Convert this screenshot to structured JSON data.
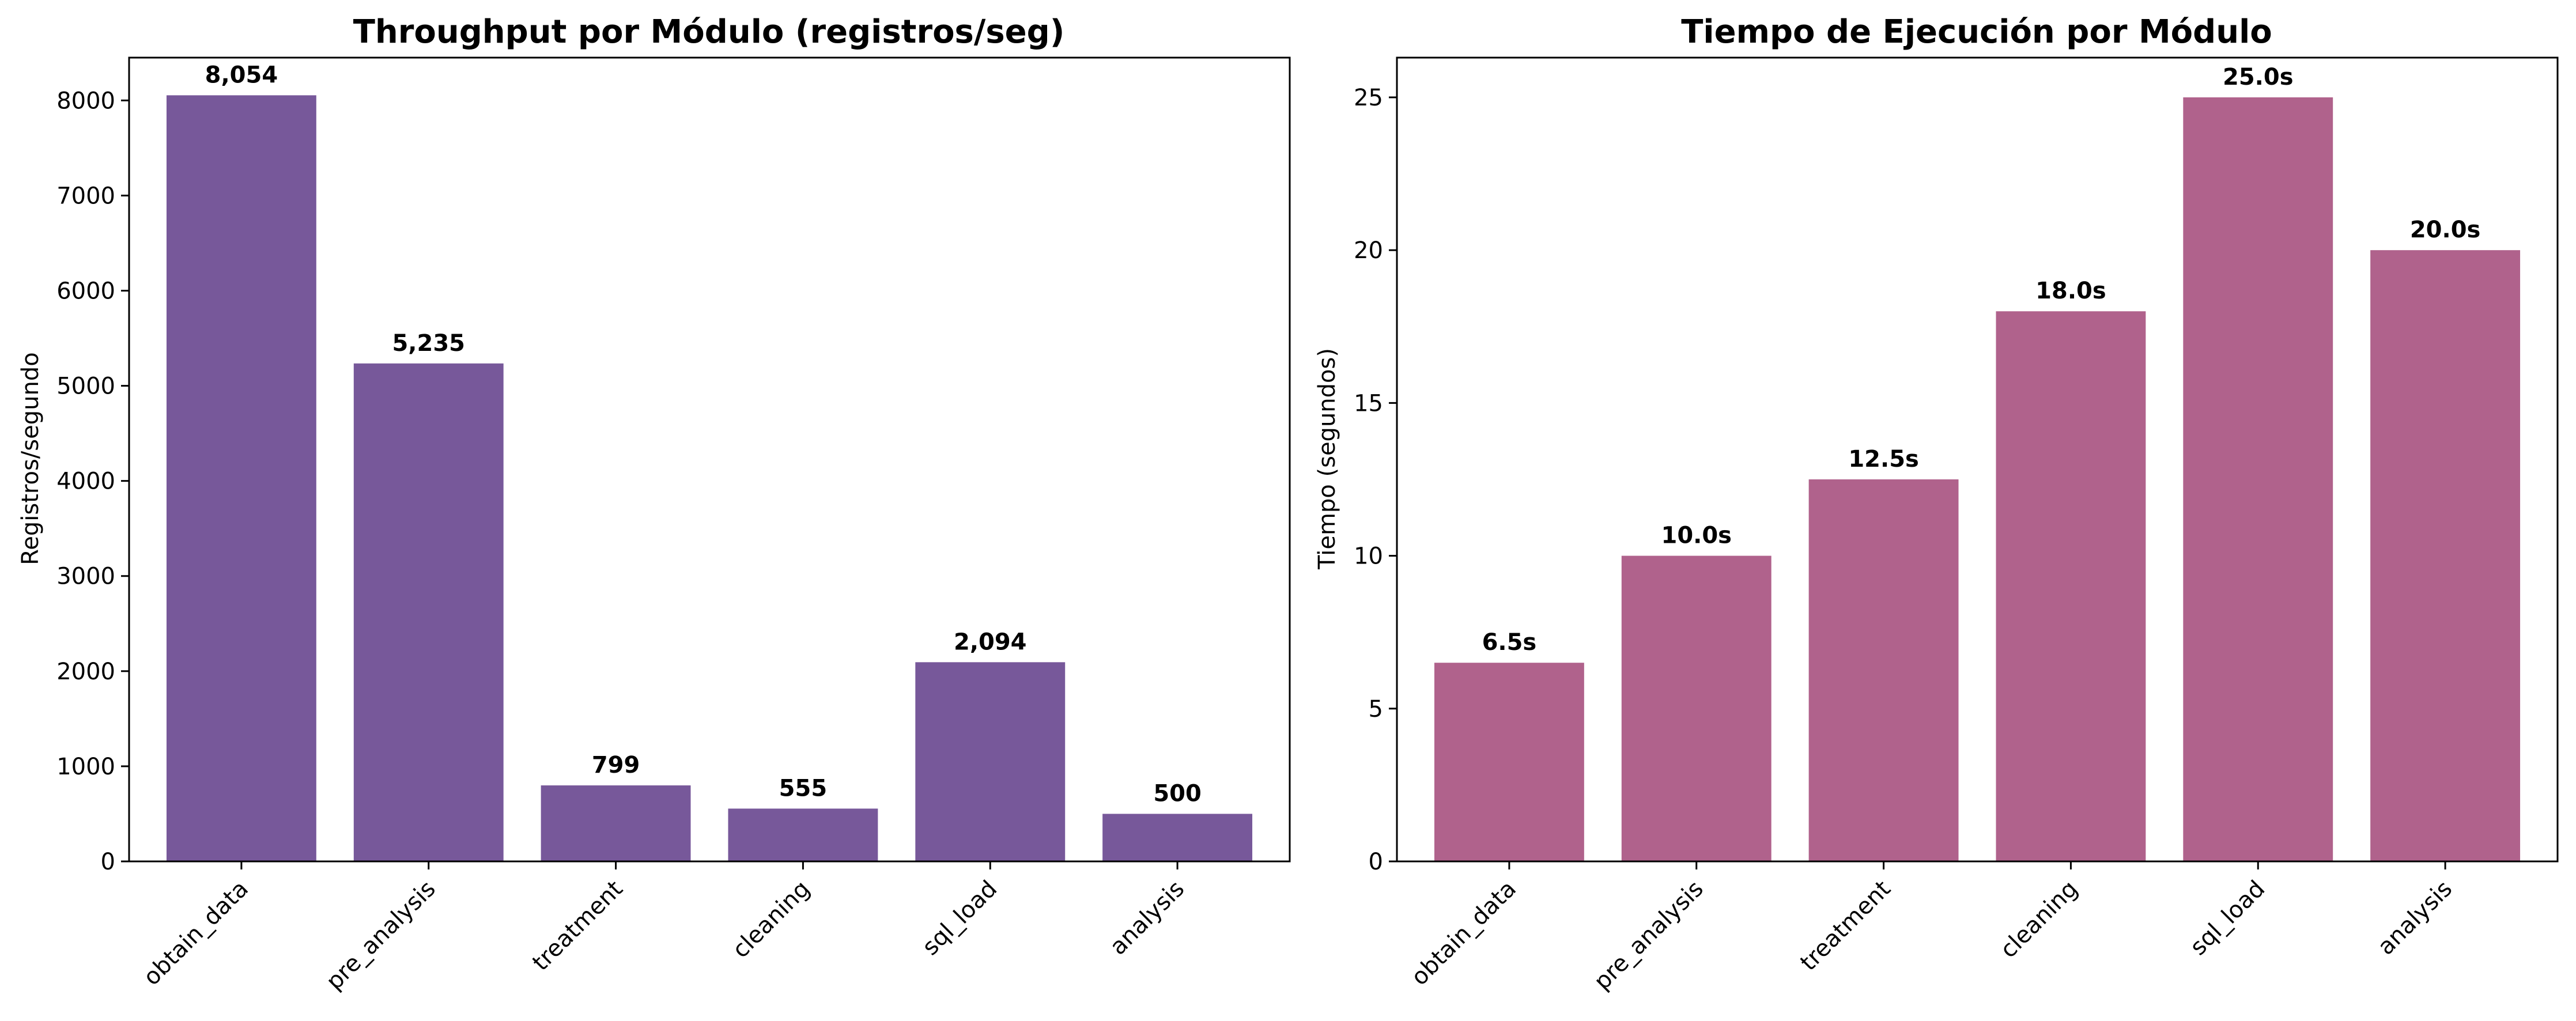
{
  "chart_data": [
    {
      "type": "bar",
      "title": "Throughput por Módulo (registros/seg)",
      "xlabel": "",
      "ylabel": "Registros/segundo",
      "categories": [
        "obtain_data",
        "pre_analysis",
        "treatment",
        "cleaning",
        "sql_load",
        "analysis"
      ],
      "values": [
        8054,
        5235,
        799,
        555,
        2094,
        500
      ],
      "value_labels": [
        "8,054",
        "5,235",
        "799",
        "555",
        "2,094",
        "500"
      ],
      "ylim": [
        0,
        8450
      ],
      "yticks": [
        0,
        1000,
        2000,
        3000,
        4000,
        5000,
        6000,
        7000,
        8000
      ],
      "ytick_labels": [
        "0",
        "1000",
        "2000",
        "3000",
        "4000",
        "5000",
        "6000",
        "7000",
        "8000"
      ],
      "bar_color": "#77589A",
      "grid": false,
      "legend": false
    },
    {
      "type": "bar",
      "title": "Tiempo de Ejecución por Módulo",
      "xlabel": "",
      "ylabel": "Tiempo (segundos)",
      "categories": [
        "obtain_data",
        "pre_analysis",
        "treatment",
        "cleaning",
        "sql_load",
        "analysis"
      ],
      "values": [
        6.5,
        10.0,
        12.5,
        18.0,
        25.0,
        20.0
      ],
      "value_labels": [
        "6.5s",
        "10.0s",
        "12.5s",
        "18.0s",
        "25.0s",
        "20.0s"
      ],
      "ylim": [
        0,
        26.3
      ],
      "yticks": [
        0,
        5,
        10,
        15,
        20,
        25
      ],
      "ytick_labels": [
        "0",
        "5",
        "10",
        "15",
        "20",
        "25"
      ],
      "bar_color": "#B0628C",
      "grid": false,
      "legend": false
    }
  ]
}
